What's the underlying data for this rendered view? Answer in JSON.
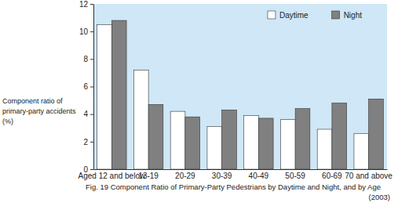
{
  "chart_data": {
    "type": "bar",
    "title": "Fig. 19 Component Ratio of Primary-Party Pedestrians by Daytime and Night, and by Age\n(2003)",
    "ylabel": "Component ratio of\nprimary-party accidents\n(%)",
    "categories": [
      "Aged 12 and below",
      "13-19",
      "20-29",
      "30-39",
      "40-49",
      "50-59",
      "60-69",
      "70 and above"
    ],
    "series": [
      {
        "name": "Daytime",
        "color": "#ffffff",
        "values": [
          10.5,
          7.2,
          4.2,
          3.1,
          3.9,
          3.6,
          2.9,
          2.6
        ]
      },
      {
        "name": "Night",
        "color": "#808080",
        "values": [
          10.8,
          4.7,
          3.8,
          4.3,
          3.7,
          4.4,
          4.8,
          5.1
        ]
      }
    ],
    "ylim": [
      0,
      12
    ],
    "yticks": [
      0,
      2,
      4,
      6,
      8,
      10,
      12
    ],
    "legend": "upper right"
  }
}
